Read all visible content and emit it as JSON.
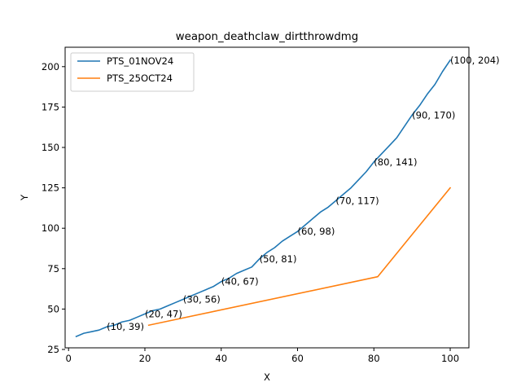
{
  "chart_data": {
    "type": "line",
    "title": "weapon_deathclaw_dirtthrowdmg",
    "xlabel": "X",
    "ylabel": "Y",
    "xlim": [
      -0.9,
      104.9
    ],
    "ylim": [
      26.0,
      212.0
    ],
    "xticks": [
      0,
      20,
      40,
      60,
      80,
      100
    ],
    "yticks": [
      25,
      50,
      75,
      100,
      125,
      150,
      175,
      200
    ],
    "grid": false,
    "legend_position": "top-left",
    "series": [
      {
        "name": "PTS_01NOV24",
        "color": "#1f77b4",
        "x": [
          2,
          4,
          6,
          8,
          10,
          12,
          14,
          16,
          18,
          20,
          22,
          24,
          26,
          28,
          30,
          32,
          34,
          36,
          38,
          40,
          42,
          44,
          46,
          48,
          50,
          52,
          54,
          56,
          58,
          60,
          62,
          64,
          66,
          68,
          70,
          72,
          74,
          76,
          78,
          80,
          82,
          84,
          86,
          88,
          90,
          92,
          94,
          96,
          98,
          100
        ],
        "y": [
          33,
          35,
          36,
          37,
          39,
          40,
          42,
          43,
          45,
          47,
          49,
          50,
          52,
          54,
          56,
          58,
          60,
          62,
          64,
          67,
          69,
          72,
          74,
          76,
          81,
          85,
          88,
          92,
          95,
          98,
          102,
          106,
          110,
          113,
          117,
          121,
          125,
          130,
          135,
          141,
          146,
          151,
          156,
          163,
          170,
          176,
          183,
          189,
          197,
          204
        ]
      },
      {
        "name": "PTS_25OCT24",
        "color": "#ff7f0e",
        "x": [
          21,
          81,
          100
        ],
        "y": [
          40,
          70,
          125
        ]
      }
    ],
    "annotations": [
      {
        "text": "(10, 39)",
        "x": 10,
        "y": 39
      },
      {
        "text": "(20, 47)",
        "x": 20,
        "y": 47
      },
      {
        "text": "(30, 56)",
        "x": 30,
        "y": 56
      },
      {
        "text": "(40, 67)",
        "x": 40,
        "y": 67
      },
      {
        "text": "(50, 81)",
        "x": 50,
        "y": 81
      },
      {
        "text": "(60, 98)",
        "x": 60,
        "y": 98
      },
      {
        "text": "(70, 117)",
        "x": 70,
        "y": 117
      },
      {
        "text": "(80, 141)",
        "x": 80,
        "y": 141
      },
      {
        "text": "(90, 170)",
        "x": 90,
        "y": 170
      },
      {
        "text": "(100, 204)",
        "x": 100,
        "y": 204
      }
    ]
  }
}
